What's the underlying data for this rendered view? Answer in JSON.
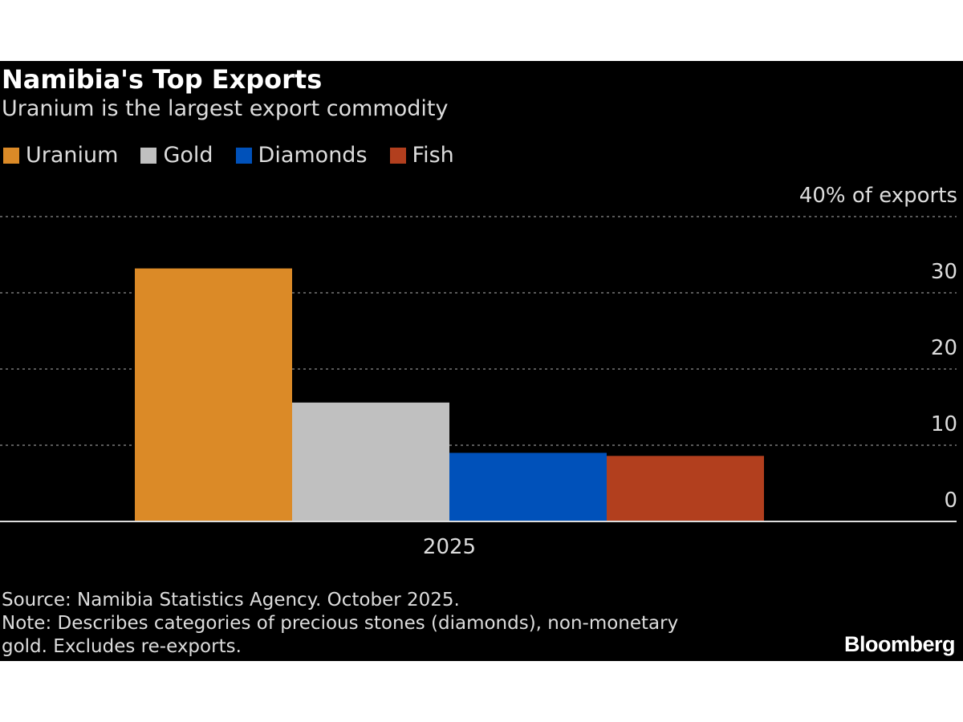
{
  "chart_data": {
    "type": "bar",
    "title": "Namibia's Top Exports",
    "subtitle": "Uranium is the largest export commodity",
    "categories": [
      "2025"
    ],
    "series": [
      {
        "name": "Uranium",
        "values": [
          33.2
        ],
        "color": "#DB8A27"
      },
      {
        "name": "Gold",
        "values": [
          15.6
        ],
        "color": "#C0C0C0"
      },
      {
        "name": "Diamonds",
        "values": [
          9.0
        ],
        "color": "#0051BA"
      },
      {
        "name": "Fish",
        "values": [
          8.6
        ],
        "color": "#B23F1E"
      }
    ],
    "yticks": [
      "0",
      "10",
      "20",
      "30",
      "40% of exports"
    ],
    "ytick_values": [
      0,
      10,
      20,
      30,
      40
    ],
    "ylim": [
      0,
      40
    ],
    "ylabel": "",
    "xlabel": "",
    "grid": true,
    "y_axis_side": "right",
    "legend_position": "top-left"
  },
  "footer": {
    "source": "Source: Namibia Statistics Agency. October 2025.",
    "note_line1": "Note: Describes categories of precious stones (diamonds), non-monetary",
    "note_line2": "gold. Excludes re-exports."
  },
  "logo": "Bloomberg"
}
